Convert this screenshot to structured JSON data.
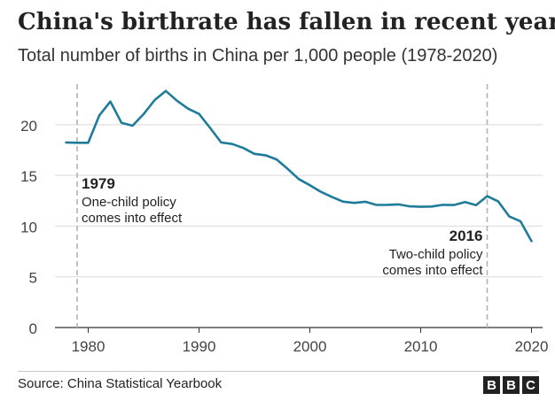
{
  "title": "China's birthrate has fallen in recent years",
  "subtitle": "Total number of births in China per 1,000 people (1978-2020)",
  "source": "Source: China Statistical Yearbook",
  "logo": [
    "B",
    "B",
    "C"
  ],
  "colors": {
    "line": "#1e7c9a",
    "grid": "#d9d9d9",
    "marker": "#b3b3b3",
    "text": "#222222"
  },
  "chart_data": {
    "type": "line",
    "title": "China's birthrate has fallen in recent years",
    "subtitle": "Total number of births in China per 1,000 people (1978-2020)",
    "xlim": [
      1977,
      2021
    ],
    "ylim": [
      0,
      24
    ],
    "grid": true,
    "x_ticks": [
      1980,
      1990,
      2000,
      2010,
      2020
    ],
    "y_ticks": [
      0,
      5,
      10,
      15,
      20
    ],
    "series": [
      {
        "x": [
          1978,
          1979,
          1980,
          1981,
          1982,
          1983,
          1984,
          1985,
          1986,
          1987,
          1988,
          1989,
          1990,
          1991,
          1992,
          1993,
          1994,
          1995,
          1996,
          1997,
          1998,
          1999,
          2000,
          2001,
          2002,
          2003,
          2004,
          2005,
          2006,
          2007,
          2008,
          2009,
          2010,
          2011,
          2012,
          2013,
          2014,
          2015,
          2016,
          2017,
          2018,
          2019,
          2020
        ],
        "y": [
          18.25,
          18.21,
          18.21,
          20.91,
          22.28,
          20.19,
          19.9,
          21.04,
          22.43,
          23.33,
          22.37,
          21.58,
          21.06,
          19.68,
          18.24,
          18.09,
          17.7,
          17.12,
          16.98,
          16.57,
          15.64,
          14.64,
          14.03,
          13.38,
          12.86,
          12.41,
          12.29,
          12.4,
          12.09,
          12.1,
          12.14,
          11.95,
          11.9,
          11.93,
          12.1,
          12.08,
          12.37,
          12.07,
          12.95,
          12.43,
          10.94,
          10.48,
          8.52
        ]
      }
    ],
    "annotations": [
      {
        "x": 1979,
        "year_label": "1979",
        "lines": [
          "One-child policy",
          "comes into effect"
        ],
        "align": "left"
      },
      {
        "x": 2016,
        "year_label": "2016",
        "lines": [
          "Two-child policy",
          "comes into effect"
        ],
        "align": "right"
      }
    ]
  }
}
